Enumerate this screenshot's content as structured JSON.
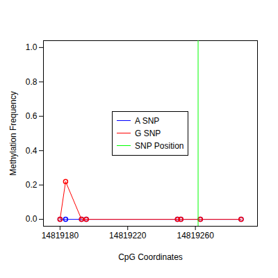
{
  "chart_data": {
    "type": "line",
    "x_label": "CpG Coordinates",
    "y_label": "Methylation Frequency",
    "x": [
      14819180,
      14819183.3,
      14819192.7,
      14819195.5,
      14819249.4,
      14819251.4,
      14819262.9,
      14819287
    ],
    "series": [
      {
        "name": "A SNP",
        "color": "#0000ff",
        "marker": "circle",
        "line_style": "solid",
        "values": [
          0,
          0,
          0,
          0,
          0,
          0,
          0,
          0
        ]
      },
      {
        "name": "G SNP",
        "color": "#ff0000",
        "marker": "circle",
        "line_style": "solid",
        "values": [
          0,
          0.22,
          0,
          0,
          0,
          0,
          0,
          0
        ]
      },
      {
        "name": "SNP Position",
        "color": "#00ff00",
        "type": "rule",
        "x": [
          14819261.6
        ]
      }
    ],
    "xlim": [
      14819170.2,
      14819296.7
    ],
    "ylim": [
      -0.04,
      1.04
    ],
    "xticks": [
      14819180,
      14819220,
      14819260
    ],
    "yticks": [
      {
        "value": 0,
        "label": "0.0"
      },
      {
        "value": 0.2,
        "label": "0.2"
      },
      {
        "value": 0.4,
        "label": "0.4"
      },
      {
        "value": 0.6,
        "label": "0.6"
      },
      {
        "value": 0.8,
        "label": "0.8"
      },
      {
        "value": 1,
        "label": "1.0"
      }
    ],
    "legend": "center",
    "grid": false
  }
}
